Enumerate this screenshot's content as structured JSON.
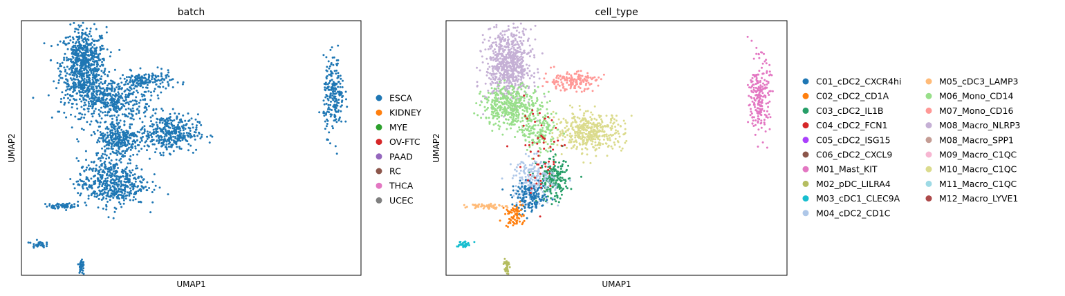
{
  "chart_data": [
    {
      "type": "scatter",
      "title": "batch",
      "xlabel": "UMAP1",
      "ylabel": "UMAP2",
      "xlim": [
        -10,
        20
      ],
      "ylim": [
        -10,
        12
      ],
      "grid": false,
      "legend_position": "right",
      "legend": [
        {
          "label": "ESCA",
          "color": "#1f77b4"
        },
        {
          "label": "KIDNEY",
          "color": "#ff7f0e"
        },
        {
          "label": "MYE",
          "color": "#2ca02c"
        },
        {
          "label": "OV-FTC",
          "color": "#d62728"
        },
        {
          "label": "PAAD",
          "color": "#9467bd"
        },
        {
          "label": "RC",
          "color": "#8c564b"
        },
        {
          "label": "THCA",
          "color": "#e377c2"
        },
        {
          "label": "UCEC",
          "color": "#7f7f7f"
        }
      ],
      "clusters": [
        {
          "name": "ESCA",
          "color": "#1f77b4",
          "cx": -4.5,
          "cy": 8.2,
          "sx": 1.0,
          "sy": 1.6,
          "n": 700
        },
        {
          "name": "ESCA",
          "color": "#1f77b4",
          "cx": -2.2,
          "cy": 5.2,
          "sx": 1.8,
          "sy": 0.9,
          "n": 450
        },
        {
          "name": "ESCA",
          "color": "#1f77b4",
          "cx": 1.0,
          "cy": 6.8,
          "sx": 1.2,
          "sy": 0.4,
          "n": 160
        },
        {
          "name": "ESCA",
          "color": "#1f77b4",
          "cx": 3.0,
          "cy": 2.3,
          "sx": 1.3,
          "sy": 0.8,
          "n": 380
        },
        {
          "name": "ESCA",
          "color": "#1f77b4",
          "cx": -1.5,
          "cy": 1.8,
          "sx": 1.0,
          "sy": 0.8,
          "n": 300
        },
        {
          "name": "ESCA",
          "color": "#1f77b4",
          "cx": -2.0,
          "cy": -2.0,
          "sx": 1.5,
          "sy": 1.0,
          "n": 500
        },
        {
          "name": "ESCA",
          "color": "#1f77b4",
          "cx": -6.5,
          "cy": -4.0,
          "sx": 0.7,
          "sy": 0.12,
          "n": 60
        },
        {
          "name": "ESCA",
          "color": "#1f77b4",
          "cx": -8.5,
          "cy": -7.3,
          "sx": 0.3,
          "sy": 0.15,
          "n": 35
        },
        {
          "name": "ESCA",
          "color": "#1f77b4",
          "cx": -4.7,
          "cy": -9.3,
          "sx": 0.12,
          "sy": 0.45,
          "n": 40
        },
        {
          "name": "ESCA",
          "color": "#1f77b4",
          "cx": 17.6,
          "cy": 5.5,
          "sx": 0.45,
          "sy": 1.6,
          "n": 220
        }
      ]
    },
    {
      "type": "scatter",
      "title": "cell_type",
      "xlabel": "UMAP1",
      "ylabel": "UMAP2",
      "xlim": [
        -10,
        20
      ],
      "ylim": [
        -10,
        12
      ],
      "grid": false,
      "legend_position": "right",
      "legend_columns": 2,
      "legend": [
        {
          "label": "C01_cDC2_CXCR4hi",
          "color": "#1f77b4"
        },
        {
          "label": "C02_cDC2_CD1A",
          "color": "#ff7f0e"
        },
        {
          "label": "C03_cDC2_IL1B",
          "color": "#279e68"
        },
        {
          "label": "C04_cDC2_FCN1",
          "color": "#d62728"
        },
        {
          "label": "C05_cDC2_ISG15",
          "color": "#aa40fc"
        },
        {
          "label": "C06_cDC2_CXCL9",
          "color": "#8c564b"
        },
        {
          "label": "M01_Mast_KIT",
          "color": "#e377c2"
        },
        {
          "label": "M02_pDC_LILRA4",
          "color": "#b5bd61"
        },
        {
          "label": "M03_cDC1_CLEC9A",
          "color": "#17becf"
        },
        {
          "label": "M04_cDC2_CD1C",
          "color": "#aec7e8"
        },
        {
          "label": "M05_cDC3_LAMP3",
          "color": "#ffbb78"
        },
        {
          "label": "M06_Mono_CD14",
          "color": "#98df8a"
        },
        {
          "label": "M07_Mono_CD16",
          "color": "#ff9896"
        },
        {
          "label": "M08_Macro_NLRP3",
          "color": "#c5b0d5"
        },
        {
          "label": "M08_Macro_SPP1",
          "color": "#c49c94"
        },
        {
          "label": "M09_Macro_C1QC",
          "color": "#f7b6d2"
        },
        {
          "label": "M10_Macro_C1QC",
          "color": "#dbdb8d"
        },
        {
          "label": "M11_Macro_C1QC",
          "color": "#9edae5"
        },
        {
          "label": "M12_Macro_LYVE1",
          "color": "#ad494a"
        }
      ],
      "clusters": [
        {
          "name": "M08_Macro_NLRP3",
          "color": "#c5b0d5",
          "cx": -4.5,
          "cy": 8.2,
          "sx": 1.0,
          "sy": 1.6,
          "n": 700
        },
        {
          "name": "M06_Mono_CD14",
          "color": "#98df8a",
          "cx": -4.2,
          "cy": 4.6,
          "sx": 1.3,
          "sy": 0.9,
          "n": 420
        },
        {
          "name": "M07_Mono_CD16",
          "color": "#ff9896",
          "cx": 1.0,
          "cy": 6.8,
          "sx": 1.2,
          "sy": 0.4,
          "n": 160
        },
        {
          "name": "M10_Macro_C1QC",
          "color": "#dbdb8d",
          "cx": 2.6,
          "cy": 2.4,
          "sx": 1.5,
          "sy": 0.8,
          "n": 420
        },
        {
          "name": "M06_Mono_CD14",
          "color": "#98df8a",
          "cx": -1.8,
          "cy": 2.3,
          "sx": 0.8,
          "sy": 0.8,
          "n": 150
        },
        {
          "name": "C03_cDC2_IL1B",
          "color": "#279e68",
          "cx": -0.6,
          "cy": -1.8,
          "sx": 0.7,
          "sy": 0.9,
          "n": 200
        },
        {
          "name": "M04_cDC2_CD1C",
          "color": "#aec7e8",
          "cx": -2.3,
          "cy": -1.9,
          "sx": 0.9,
          "sy": 1.0,
          "n": 220
        },
        {
          "name": "C01_cDC2_CXCR4hi",
          "color": "#1f77b4",
          "cx": -2.6,
          "cy": -3.3,
          "sx": 0.8,
          "sy": 0.6,
          "n": 150
        },
        {
          "name": "C02_cDC2_CD1A",
          "color": "#ff7f0e",
          "cx": -4.0,
          "cy": -4.8,
          "sx": 0.4,
          "sy": 0.5,
          "n": 70
        },
        {
          "name": "C04_cDC2_FCN1",
          "color": "#d62728",
          "cx": -1.8,
          "cy": 0.8,
          "sx": 1.2,
          "sy": 2.0,
          "n": 60
        },
        {
          "name": "M05_cDC3_LAMP3",
          "color": "#ffbb78",
          "cx": -6.5,
          "cy": -4.0,
          "sx": 0.7,
          "sy": 0.12,
          "n": 60
        },
        {
          "name": "M03_cDC1_CLEC9A",
          "color": "#17becf",
          "cx": -8.5,
          "cy": -7.3,
          "sx": 0.3,
          "sy": 0.15,
          "n": 35
        },
        {
          "name": "M02_pDC_LILRA4",
          "color": "#b5bd61",
          "cx": -4.7,
          "cy": -9.3,
          "sx": 0.12,
          "sy": 0.45,
          "n": 40
        },
        {
          "name": "M01_Mast_KIT",
          "color": "#e377c2",
          "cx": 17.6,
          "cy": 5.5,
          "sx": 0.45,
          "sy": 1.6,
          "n": 220
        }
      ]
    }
  ]
}
